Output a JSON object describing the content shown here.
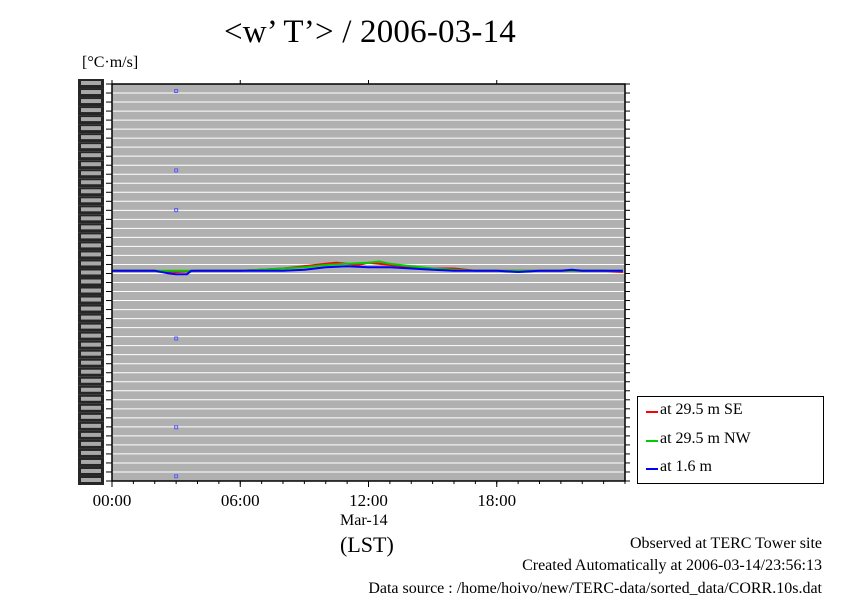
{
  "title": "<w’ T’> / 2006-03-14",
  "unit_label": "[°C·m/s]",
  "chart_data": {
    "type": "line",
    "xlabel": "(LST)",
    "date_label": "Mar-14",
    "x_tick_labels": [
      "00:00",
      "06:00",
      "12:00",
      "18:00"
    ],
    "x_ticks_hours": [
      0,
      6,
      12,
      18
    ],
    "xlim": [
      0,
      24
    ],
    "ylim": [
      -0.9,
      0.8
    ],
    "grid": true,
    "background": "#b0b0b0",
    "legend_position": "bottom-right outside",
    "series": [
      {
        "name": "at 29.5 m SE",
        "color": "#ff0000",
        "x": [
          0,
          1,
          2,
          3,
          4,
          5,
          6,
          7,
          8,
          9,
          10,
          10.5,
          11,
          11.5,
          12,
          12.5,
          13,
          14,
          15,
          16,
          17,
          18,
          19,
          20,
          21,
          22,
          23,
          23.9
        ],
        "y": [
          0.0,
          0.0,
          0.0,
          -0.005,
          0.0,
          0.0,
          0.0,
          0.005,
          0.01,
          0.02,
          0.03,
          0.035,
          0.03,
          0.025,
          0.035,
          0.03,
          0.025,
          0.015,
          0.01,
          0.01,
          0.0,
          0.0,
          0.0,
          0.0,
          0.0,
          0.0,
          0.0,
          -0.005
        ]
      },
      {
        "name": "at 29.5 m NW",
        "color": "#00cc00",
        "x": [
          0,
          1,
          2,
          3,
          4,
          5,
          6,
          7,
          8,
          9,
          10,
          11,
          12,
          12.5,
          13,
          14,
          15,
          16,
          17,
          18,
          19,
          20,
          21,
          22,
          23,
          23.9
        ],
        "y": [
          0.0,
          0.0,
          0.0,
          0.0,
          0.0,
          0.0,
          0.0,
          0.005,
          0.01,
          0.015,
          0.025,
          0.03,
          0.035,
          0.04,
          0.03,
          0.02,
          0.01,
          0.005,
          0.0,
          0.0,
          0.0,
          0.0,
          0.0,
          0.0,
          0.0,
          0.0
        ]
      },
      {
        "name": "at 1.6 m",
        "color": "#0000ff",
        "x": [
          0,
          1,
          2,
          2.6,
          3.0,
          3.5,
          3.7,
          4,
          5,
          6,
          7,
          8,
          9,
          10,
          11,
          12,
          13,
          14,
          15,
          16,
          17,
          18,
          19,
          20,
          21,
          21.5,
          22,
          23,
          23.9
        ],
        "y": [
          0.0,
          0.0,
          0.0,
          -0.01,
          -0.015,
          -0.015,
          0.0,
          0.0,
          0.0,
          0.0,
          0.0,
          0.0,
          0.005,
          0.015,
          0.02,
          0.015,
          0.015,
          0.01,
          0.005,
          0.0,
          0.0,
          0.0,
          -0.005,
          0.0,
          0.0,
          0.005,
          0.0,
          0.0,
          0.0
        ]
      }
    ],
    "outlier_points": {
      "color": "#5a5aff",
      "x": [
        3.0,
        3.0,
        3.0,
        3.0,
        3.0,
        3.0
      ],
      "y": [
        0.77,
        0.43,
        0.26,
        -0.29,
        -0.67,
        -0.88
      ]
    }
  },
  "footer": {
    "line1": "Observed at TERC Tower site",
    "line2": "Created Automatically at 2006-03-14/23:56:13",
    "line3": "Data source : /home/hoivo/new/TERC-data/sorted_data/CORR.10s.dat"
  }
}
